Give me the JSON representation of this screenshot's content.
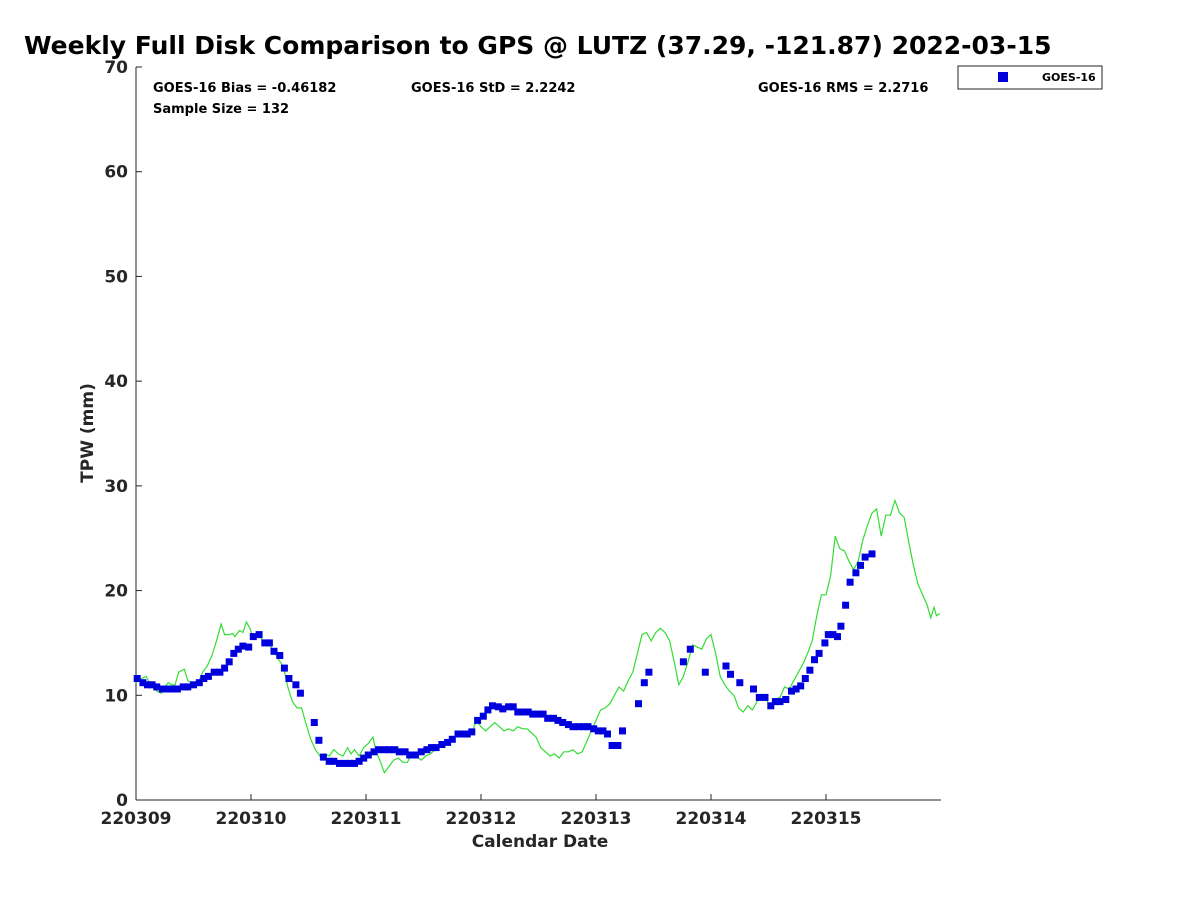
{
  "chart_data": {
    "type": "scatter",
    "title": "Weekly Full Disk Comparison to GPS @ LUTZ (37.29, -121.87) 2022-03-15",
    "xlabel": "Calendar Date",
    "ylabel": "TPW (mm)",
    "xlim": [
      0,
      7
    ],
    "ylim": [
      0,
      70
    ],
    "yticks": [
      0,
      10,
      20,
      30,
      40,
      50,
      60,
      70
    ],
    "xticks": [
      {
        "value": 0,
        "label": "220309"
      },
      {
        "value": 1,
        "label": "220310"
      },
      {
        "value": 2,
        "label": "220311"
      },
      {
        "value": 3,
        "label": "220312"
      },
      {
        "value": 4,
        "label": "220313"
      },
      {
        "value": 5,
        "label": "220314"
      },
      {
        "value": 6,
        "label": "220315"
      }
    ],
    "grid": false,
    "legend_position": "top-right, outside plot",
    "stats": {
      "bias": "GOES-16 Bias = -0.46182",
      "std": "GOES-16 StD = 2.2242",
      "rms": "GOES-16 RMS = 2.2716",
      "sample": "Sample Size = 132"
    },
    "series": [
      {
        "name": "GOES-16",
        "kind": "markers",
        "color": "#0000dd",
        "points": [
          [
            0.01,
            11.6
          ],
          [
            0.06,
            11.2
          ],
          [
            0.1,
            11.0
          ],
          [
            0.14,
            11.0
          ],
          [
            0.18,
            10.8
          ],
          [
            0.23,
            10.6
          ],
          [
            0.28,
            10.6
          ],
          [
            0.32,
            10.6
          ],
          [
            0.36,
            10.6
          ],
          [
            0.41,
            10.8
          ],
          [
            0.45,
            10.8
          ],
          [
            0.5,
            11.0
          ],
          [
            0.55,
            11.2
          ],
          [
            0.59,
            11.6
          ],
          [
            0.63,
            11.8
          ],
          [
            0.68,
            12.2
          ],
          [
            0.73,
            12.2
          ],
          [
            0.77,
            12.6
          ],
          [
            0.81,
            13.2
          ],
          [
            0.85,
            14.0
          ],
          [
            0.89,
            14.4
          ],
          [
            0.93,
            14.7
          ],
          [
            0.98,
            14.6
          ],
          [
            1.02,
            15.6
          ],
          [
            1.07,
            15.8
          ],
          [
            1.12,
            15.0
          ],
          [
            1.16,
            15.0
          ],
          [
            1.2,
            14.2
          ],
          [
            1.25,
            13.8
          ],
          [
            1.29,
            12.6
          ],
          [
            1.33,
            11.6
          ],
          [
            1.39,
            11.0
          ],
          [
            1.43,
            10.2
          ],
          [
            1.55,
            7.4
          ],
          [
            1.59,
            5.7
          ],
          [
            1.63,
            4.1
          ],
          [
            1.68,
            3.7
          ],
          [
            1.72,
            3.7
          ],
          [
            1.77,
            3.5
          ],
          [
            1.82,
            3.5
          ],
          [
            1.86,
            3.5
          ],
          [
            1.9,
            3.5
          ],
          [
            1.94,
            3.7
          ],
          [
            1.98,
            4.0
          ],
          [
            2.02,
            4.3
          ],
          [
            2.07,
            4.6
          ],
          [
            2.11,
            4.8
          ],
          [
            2.16,
            4.8
          ],
          [
            2.2,
            4.8
          ],
          [
            2.25,
            4.8
          ],
          [
            2.29,
            4.6
          ],
          [
            2.34,
            4.6
          ],
          [
            2.38,
            4.3
          ],
          [
            2.43,
            4.3
          ],
          [
            2.48,
            4.6
          ],
          [
            2.53,
            4.8
          ],
          [
            2.57,
            5.0
          ],
          [
            2.61,
            5.0
          ],
          [
            2.66,
            5.3
          ],
          [
            2.71,
            5.5
          ],
          [
            2.75,
            5.8
          ],
          [
            2.8,
            6.3
          ],
          [
            2.84,
            6.3
          ],
          [
            2.88,
            6.3
          ],
          [
            2.92,
            6.5
          ],
          [
            2.97,
            7.6
          ],
          [
            3.02,
            8.0
          ],
          [
            3.06,
            8.6
          ],
          [
            3.1,
            9.0
          ],
          [
            3.15,
            8.9
          ],
          [
            3.19,
            8.7
          ],
          [
            3.24,
            8.9
          ],
          [
            3.28,
            8.9
          ],
          [
            3.32,
            8.4
          ],
          [
            3.37,
            8.4
          ],
          [
            3.41,
            8.4
          ],
          [
            3.45,
            8.2
          ],
          [
            3.5,
            8.2
          ],
          [
            3.54,
            8.2
          ],
          [
            3.58,
            7.8
          ],
          [
            3.63,
            7.8
          ],
          [
            3.67,
            7.6
          ],
          [
            3.71,
            7.4
          ],
          [
            3.76,
            7.2
          ],
          [
            3.8,
            7.0
          ],
          [
            3.85,
            7.0
          ],
          [
            3.89,
            7.0
          ],
          [
            3.93,
            7.0
          ],
          [
            3.98,
            6.8
          ],
          [
            4.02,
            6.6
          ],
          [
            4.06,
            6.6
          ],
          [
            4.1,
            6.3
          ],
          [
            4.14,
            5.2
          ],
          [
            4.19,
            5.2
          ],
          [
            4.23,
            6.6
          ],
          [
            4.37,
            9.2
          ],
          [
            4.42,
            11.2
          ],
          [
            4.46,
            12.2
          ],
          [
            4.76,
            13.2
          ],
          [
            4.82,
            14.4
          ],
          [
            4.95,
            12.2
          ],
          [
            5.13,
            12.8
          ],
          [
            5.17,
            12.0
          ],
          [
            5.25,
            11.2
          ],
          [
            5.37,
            10.6
          ],
          [
            5.42,
            9.8
          ],
          [
            5.47,
            9.8
          ],
          [
            5.52,
            9.0
          ],
          [
            5.56,
            9.4
          ],
          [
            5.6,
            9.4
          ],
          [
            5.65,
            9.6
          ],
          [
            5.7,
            10.4
          ],
          [
            5.74,
            10.6
          ],
          [
            5.78,
            10.9
          ],
          [
            5.82,
            11.6
          ],
          [
            5.86,
            12.4
          ],
          [
            5.9,
            13.4
          ],
          [
            5.94,
            14.0
          ],
          [
            5.99,
            15.0
          ],
          [
            6.02,
            15.8
          ],
          [
            6.06,
            15.8
          ],
          [
            6.1,
            15.6
          ],
          [
            6.13,
            16.6
          ],
          [
            6.17,
            18.6
          ],
          [
            6.21,
            20.8
          ],
          [
            6.26,
            21.7
          ],
          [
            6.3,
            22.4
          ],
          [
            6.34,
            23.2
          ],
          [
            6.4,
            23.5
          ]
        ]
      },
      {
        "kind": "line",
        "color": "#33dd33",
        "points": [
          [
            0.0,
            11.2
          ],
          [
            0.05,
            11.6
          ],
          [
            0.09,
            11.8
          ],
          [
            0.12,
            11.1
          ],
          [
            0.15,
            10.9
          ],
          [
            0.18,
            10.4
          ],
          [
            0.22,
            10.2
          ],
          [
            0.25,
            10.8
          ],
          [
            0.28,
            11.2
          ],
          [
            0.31,
            11.0
          ],
          [
            0.34,
            11.0
          ],
          [
            0.37,
            12.2
          ],
          [
            0.42,
            12.5
          ],
          [
            0.45,
            11.4
          ],
          [
            0.48,
            11.2
          ],
          [
            0.5,
            11.0
          ],
          [
            0.54,
            11.2
          ],
          [
            0.58,
            12.2
          ],
          [
            0.62,
            12.8
          ],
          [
            0.66,
            13.8
          ],
          [
            0.7,
            15.2
          ],
          [
            0.74,
            16.8
          ],
          [
            0.77,
            15.8
          ],
          [
            0.81,
            15.8
          ],
          [
            0.84,
            15.9
          ],
          [
            0.86,
            15.6
          ],
          [
            0.9,
            16.2
          ],
          [
            0.93,
            16.0
          ],
          [
            0.96,
            17.0
          ],
          [
            0.99,
            16.4
          ],
          [
            1.02,
            15.4
          ],
          [
            1.05,
            15.8
          ],
          [
            1.08,
            15.6
          ],
          [
            1.12,
            14.8
          ],
          [
            1.16,
            14.8
          ],
          [
            1.2,
            14.2
          ],
          [
            1.24,
            13.4
          ],
          [
            1.28,
            12.8
          ],
          [
            1.32,
            10.8
          ],
          [
            1.36,
            9.4
          ],
          [
            1.4,
            8.8
          ],
          [
            1.44,
            8.8
          ],
          [
            1.48,
            7.2
          ],
          [
            1.52,
            5.8
          ],
          [
            1.56,
            4.8
          ],
          [
            1.6,
            4.2
          ],
          [
            1.64,
            4.4
          ],
          [
            1.68,
            4.2
          ],
          [
            1.72,
            4.8
          ],
          [
            1.76,
            4.4
          ],
          [
            1.8,
            4.2
          ],
          [
            1.84,
            5.0
          ],
          [
            1.87,
            4.4
          ],
          [
            1.9,
            4.8
          ],
          [
            1.94,
            4.2
          ],
          [
            1.98,
            5.0
          ],
          [
            2.02,
            5.4
          ],
          [
            2.06,
            6.0
          ],
          [
            2.09,
            4.6
          ],
          [
            2.12,
            3.8
          ],
          [
            2.16,
            2.6
          ],
          [
            2.2,
            3.2
          ],
          [
            2.24,
            3.8
          ],
          [
            2.28,
            4.0
          ],
          [
            2.32,
            3.6
          ],
          [
            2.36,
            3.6
          ],
          [
            2.4,
            4.4
          ],
          [
            2.44,
            4.2
          ],
          [
            2.48,
            3.8
          ],
          [
            2.52,
            4.2
          ],
          [
            2.56,
            4.4
          ],
          [
            2.6,
            4.8
          ],
          [
            2.64,
            5.4
          ],
          [
            2.68,
            5.6
          ],
          [
            2.72,
            5.4
          ],
          [
            2.76,
            6.0
          ],
          [
            2.8,
            6.2
          ],
          [
            2.84,
            6.4
          ],
          [
            2.88,
            6.0
          ],
          [
            2.92,
            6.4
          ],
          [
            2.96,
            7.6
          ],
          [
            3.0,
            7.0
          ],
          [
            3.04,
            6.6
          ],
          [
            3.08,
            7.0
          ],
          [
            3.12,
            7.4
          ],
          [
            3.16,
            7.0
          ],
          [
            3.2,
            6.6
          ],
          [
            3.24,
            6.8
          ],
          [
            3.28,
            6.6
          ],
          [
            3.32,
            7.0
          ],
          [
            3.36,
            6.8
          ],
          [
            3.4,
            6.8
          ],
          [
            3.44,
            6.4
          ],
          [
            3.48,
            6.0
          ],
          [
            3.52,
            5.0
          ],
          [
            3.56,
            4.6
          ],
          [
            3.6,
            4.2
          ],
          [
            3.64,
            4.4
          ],
          [
            3.68,
            4.0
          ],
          [
            3.72,
            4.6
          ],
          [
            3.76,
            4.6
          ],
          [
            3.8,
            4.8
          ],
          [
            3.84,
            4.4
          ],
          [
            3.88,
            4.6
          ],
          [
            3.92,
            5.6
          ],
          [
            3.96,
            6.6
          ],
          [
            4.0,
            7.6
          ],
          [
            4.04,
            8.6
          ],
          [
            4.08,
            8.8
          ],
          [
            4.12,
            9.2
          ],
          [
            4.16,
            10.0
          ],
          [
            4.2,
            10.8
          ],
          [
            4.24,
            10.4
          ],
          [
            4.28,
            11.4
          ],
          [
            4.32,
            12.2
          ],
          [
            4.36,
            14.0
          ],
          [
            4.4,
            15.8
          ],
          [
            4.44,
            16.0
          ],
          [
            4.48,
            15.2
          ],
          [
            4.52,
            16.0
          ],
          [
            4.56,
            16.4
          ],
          [
            4.6,
            16.0
          ],
          [
            4.64,
            15.2
          ],
          [
            4.68,
            13.2
          ],
          [
            4.72,
            11.0
          ],
          [
            4.76,
            11.8
          ],
          [
            4.8,
            13.2
          ],
          [
            4.84,
            14.8
          ],
          [
            4.88,
            14.6
          ],
          [
            4.92,
            14.4
          ],
          [
            4.96,
            15.4
          ],
          [
            5.0,
            15.8
          ],
          [
            5.04,
            14.0
          ],
          [
            5.08,
            11.8
          ],
          [
            5.12,
            11.0
          ],
          [
            5.16,
            10.4
          ],
          [
            5.2,
            10.0
          ],
          [
            5.24,
            8.8
          ],
          [
            5.28,
            8.4
          ],
          [
            5.32,
            9.0
          ],
          [
            5.36,
            8.6
          ],
          [
            5.4,
            9.4
          ],
          [
            5.44,
            9.8
          ],
          [
            5.48,
            9.6
          ],
          [
            5.52,
            8.8
          ],
          [
            5.56,
            9.6
          ],
          [
            5.6,
            9.8
          ],
          [
            5.64,
            10.8
          ],
          [
            5.68,
            10.6
          ],
          [
            5.72,
            11.4
          ],
          [
            5.76,
            12.2
          ],
          [
            5.8,
            13.0
          ],
          [
            5.84,
            14.0
          ],
          [
            5.88,
            15.2
          ],
          [
            5.92,
            17.6
          ],
          [
            5.96,
            19.6
          ],
          [
            6.0,
            19.6
          ],
          [
            6.04,
            21.4
          ],
          [
            6.08,
            25.2
          ],
          [
            6.12,
            24.0
          ],
          [
            6.16,
            23.8
          ],
          [
            6.2,
            22.8
          ],
          [
            6.24,
            22.0
          ],
          [
            6.28,
            22.8
          ],
          [
            6.32,
            24.8
          ],
          [
            6.36,
            26.2
          ],
          [
            6.4,
            27.4
          ],
          [
            6.44,
            27.8
          ],
          [
            6.48,
            25.2
          ],
          [
            6.52,
            27.2
          ],
          [
            6.56,
            27.2
          ],
          [
            6.6,
            28.6
          ],
          [
            6.64,
            27.4
          ],
          [
            6.68,
            27.0
          ],
          [
            6.72,
            24.6
          ],
          [
            6.76,
            22.4
          ],
          [
            6.8,
            20.6
          ],
          [
            6.84,
            19.6
          ],
          [
            6.88,
            18.6
          ],
          [
            6.91,
            17.4
          ],
          [
            6.94,
            18.4
          ],
          [
            6.96,
            17.6
          ],
          [
            6.99,
            17.8
          ]
        ]
      }
    ]
  }
}
